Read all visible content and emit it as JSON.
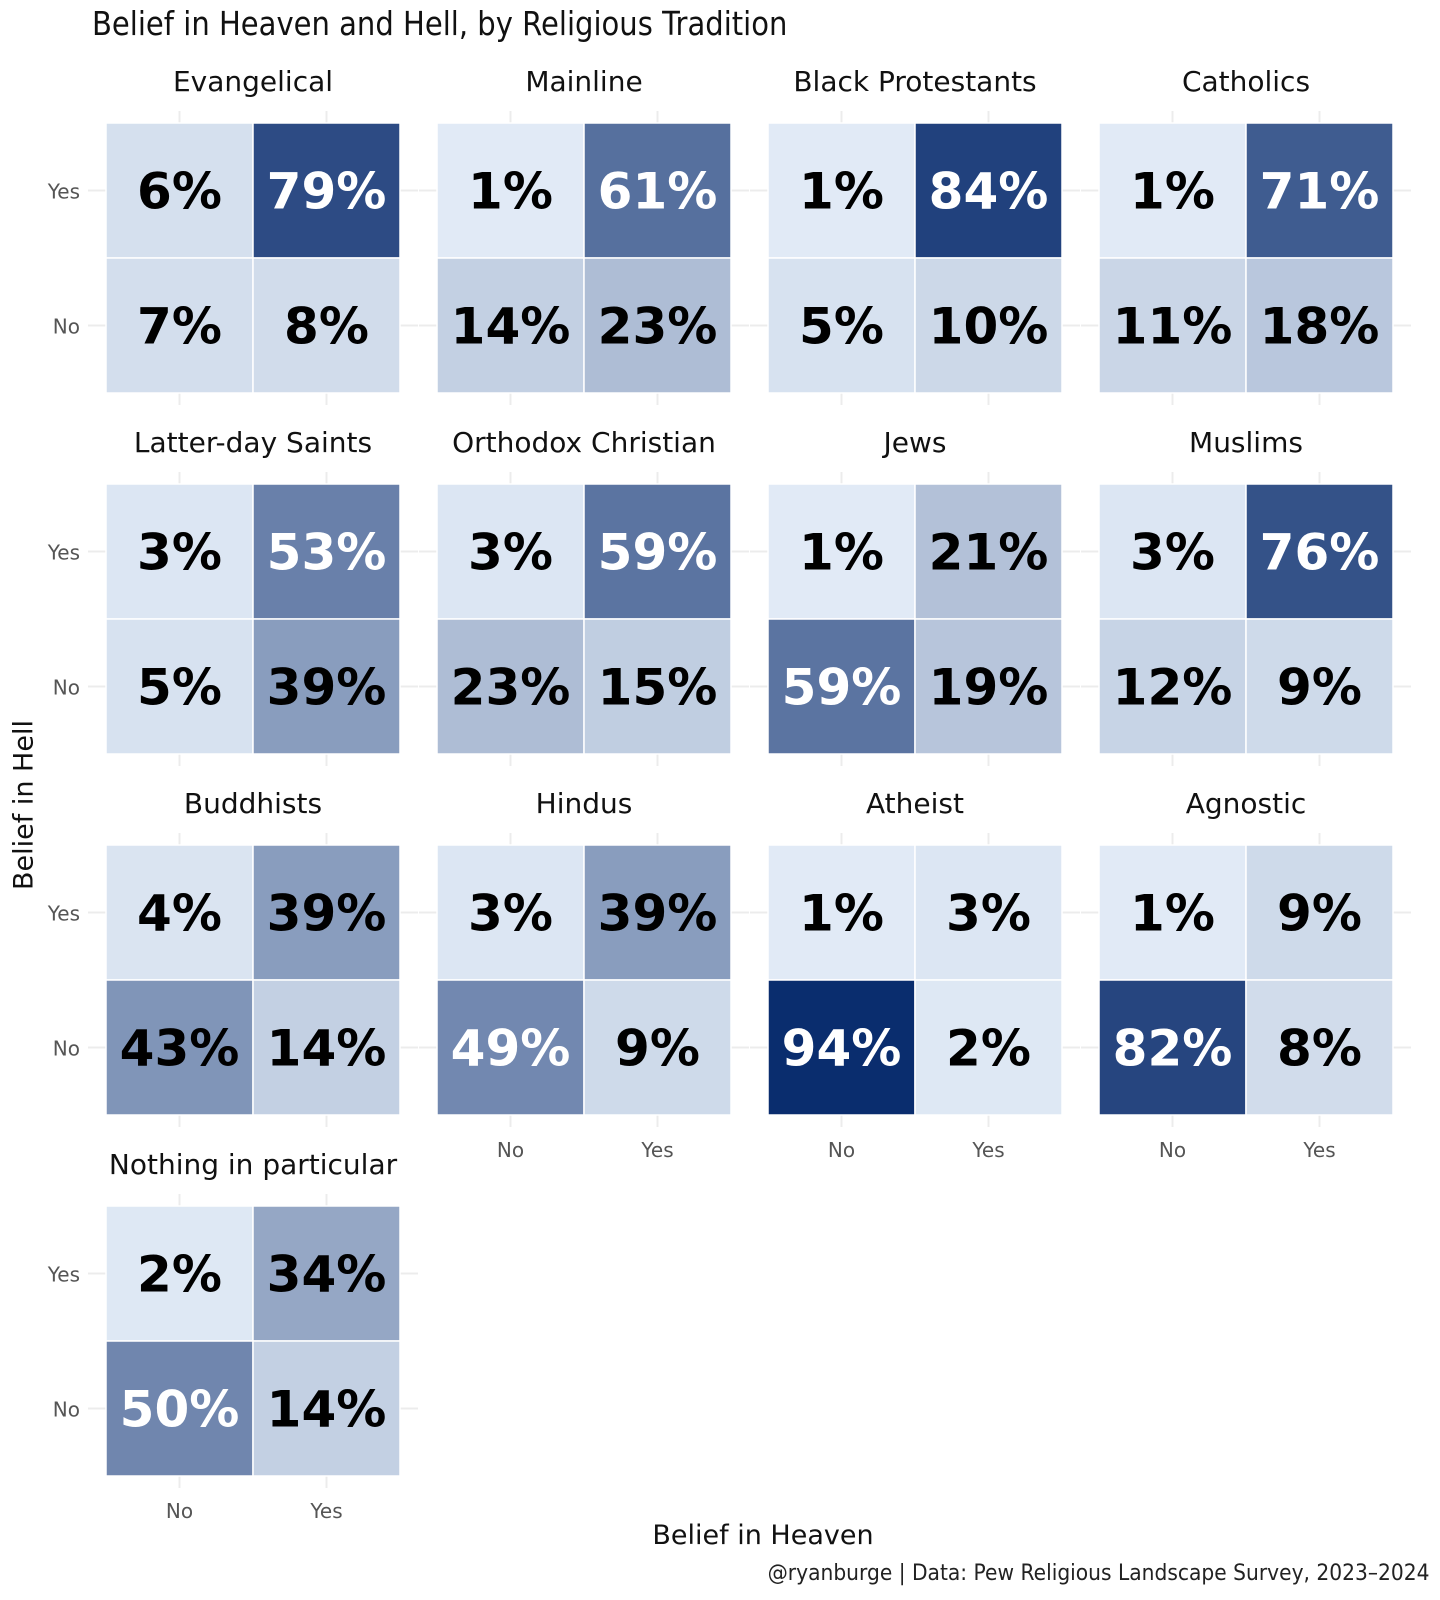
{
  "chart_data": {
    "type": "heatmap",
    "title": "Belief in Heaven and Hell, by Religious Tradition",
    "xlabel": "Belief in Heaven",
    "ylabel": "Belief in Hell",
    "caption": "@ryanburge | Data: Pew Religious Landscape Survey, 2023–2024",
    "x_categories": [
      "No",
      "Yes"
    ],
    "y_categories": [
      "Yes",
      "No"
    ],
    "value_unit": "%",
    "color_scale": {
      "low": "#e3ecf7",
      "high": "#0a2d6e"
    },
    "grid": true,
    "facets": [
      {
        "name": "Evangelical",
        "cells": [
          {
            "heaven": "No",
            "hell": "Yes",
            "value": 6
          },
          {
            "heaven": "Yes",
            "hell": "Yes",
            "value": 79
          },
          {
            "heaven": "No",
            "hell": "No",
            "value": 7
          },
          {
            "heaven": "Yes",
            "hell": "No",
            "value": 8
          }
        ]
      },
      {
        "name": "Mainline",
        "cells": [
          {
            "heaven": "No",
            "hell": "Yes",
            "value": 1
          },
          {
            "heaven": "Yes",
            "hell": "Yes",
            "value": 61
          },
          {
            "heaven": "No",
            "hell": "No",
            "value": 14
          },
          {
            "heaven": "Yes",
            "hell": "No",
            "value": 23
          }
        ]
      },
      {
        "name": "Black Protestants",
        "cells": [
          {
            "heaven": "No",
            "hell": "Yes",
            "value": 1
          },
          {
            "heaven": "Yes",
            "hell": "Yes",
            "value": 84
          },
          {
            "heaven": "No",
            "hell": "No",
            "value": 5
          },
          {
            "heaven": "Yes",
            "hell": "No",
            "value": 10
          }
        ]
      },
      {
        "name": "Catholics",
        "cells": [
          {
            "heaven": "No",
            "hell": "Yes",
            "value": 1
          },
          {
            "heaven": "Yes",
            "hell": "Yes",
            "value": 71
          },
          {
            "heaven": "No",
            "hell": "No",
            "value": 11
          },
          {
            "heaven": "Yes",
            "hell": "No",
            "value": 18
          }
        ]
      },
      {
        "name": "Latter-day Saints",
        "cells": [
          {
            "heaven": "No",
            "hell": "Yes",
            "value": 3
          },
          {
            "heaven": "Yes",
            "hell": "Yes",
            "value": 53
          },
          {
            "heaven": "No",
            "hell": "No",
            "value": 5
          },
          {
            "heaven": "Yes",
            "hell": "No",
            "value": 39
          }
        ]
      },
      {
        "name": "Orthodox Christian",
        "cells": [
          {
            "heaven": "No",
            "hell": "Yes",
            "value": 3
          },
          {
            "heaven": "Yes",
            "hell": "Yes",
            "value": 59
          },
          {
            "heaven": "No",
            "hell": "No",
            "value": 23
          },
          {
            "heaven": "Yes",
            "hell": "No",
            "value": 15
          }
        ]
      },
      {
        "name": "Jews",
        "cells": [
          {
            "heaven": "No",
            "hell": "Yes",
            "value": 1
          },
          {
            "heaven": "Yes",
            "hell": "Yes",
            "value": 21
          },
          {
            "heaven": "No",
            "hell": "No",
            "value": 59
          },
          {
            "heaven": "Yes",
            "hell": "No",
            "value": 19
          }
        ]
      },
      {
        "name": "Muslims",
        "cells": [
          {
            "heaven": "No",
            "hell": "Yes",
            "value": 3
          },
          {
            "heaven": "Yes",
            "hell": "Yes",
            "value": 76
          },
          {
            "heaven": "No",
            "hell": "No",
            "value": 12
          },
          {
            "heaven": "Yes",
            "hell": "No",
            "value": 9
          }
        ]
      },
      {
        "name": "Buddhists",
        "cells": [
          {
            "heaven": "No",
            "hell": "Yes",
            "value": 4
          },
          {
            "heaven": "Yes",
            "hell": "Yes",
            "value": 39
          },
          {
            "heaven": "No",
            "hell": "No",
            "value": 43
          },
          {
            "heaven": "Yes",
            "hell": "No",
            "value": 14
          }
        ]
      },
      {
        "name": "Hindus",
        "cells": [
          {
            "heaven": "No",
            "hell": "Yes",
            "value": 3
          },
          {
            "heaven": "Yes",
            "hell": "Yes",
            "value": 39
          },
          {
            "heaven": "No",
            "hell": "No",
            "value": 49
          },
          {
            "heaven": "Yes",
            "hell": "No",
            "value": 9
          }
        ]
      },
      {
        "name": "Atheist",
        "cells": [
          {
            "heaven": "No",
            "hell": "Yes",
            "value": 1
          },
          {
            "heaven": "Yes",
            "hell": "Yes",
            "value": 3
          },
          {
            "heaven": "No",
            "hell": "No",
            "value": 94
          },
          {
            "heaven": "Yes",
            "hell": "No",
            "value": 2
          }
        ]
      },
      {
        "name": "Agnostic",
        "cells": [
          {
            "heaven": "No",
            "hell": "Yes",
            "value": 1
          },
          {
            "heaven": "Yes",
            "hell": "Yes",
            "value": 9
          },
          {
            "heaven": "No",
            "hell": "No",
            "value": 82
          },
          {
            "heaven": "Yes",
            "hell": "No",
            "value": 8
          }
        ]
      },
      {
        "name": "Nothing in particular",
        "cells": [
          {
            "heaven": "No",
            "hell": "Yes",
            "value": 2
          },
          {
            "heaven": "Yes",
            "hell": "Yes",
            "value": 34
          },
          {
            "heaven": "No",
            "hell": "No",
            "value": 50
          },
          {
            "heaven": "Yes",
            "hell": "No",
            "value": 14
          }
        ]
      }
    ]
  }
}
